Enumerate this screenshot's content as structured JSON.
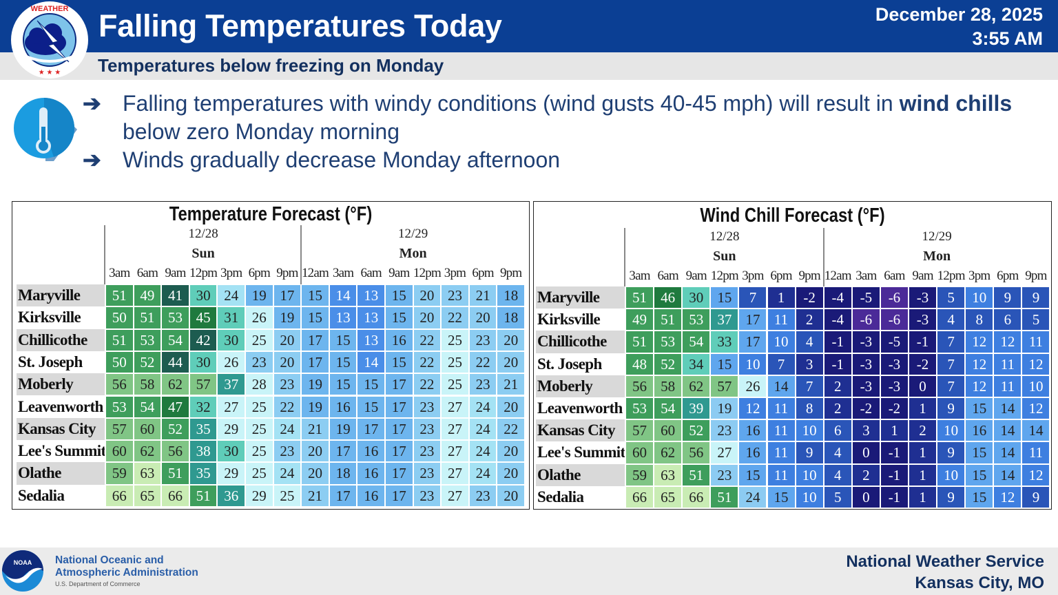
{
  "header": {
    "title": "Falling Temperatures Today",
    "subtitle": "Temperatures below freezing on Monday",
    "date": "December 28, 2025",
    "time": "3:55 AM",
    "logo_text": "NATIONAL WEATHER SERVICE"
  },
  "bullets": [
    {
      "pre": "Falling temperatures with windy conditions (wind gusts 40-45 mph) will result in ",
      "bold": "wind chills",
      "post": " below zero Monday morning"
    },
    {
      "pre": "Winds gradually decrease Monday afternoon",
      "bold": "",
      "post": ""
    }
  ],
  "icons": {
    "bullet": "arrow-right-icon",
    "topic": "thermometer-icon"
  },
  "colors": {
    "header_blue": "#0b3f94",
    "text_navy": "#13305f"
  },
  "locations": [
    "Maryville",
    "Kirksville",
    "Chillicothe",
    "St. Joseph",
    "Moberly",
    "Leavenworth",
    "Kansas City",
    "Lee's Summit",
    "Olathe",
    "Sedalia"
  ],
  "days": [
    {
      "date": "12/28",
      "day": "Sun",
      "times": [
        "3am",
        "6am",
        "9am",
        "12pm",
        "3pm",
        "6pm",
        "9pm"
      ]
    },
    {
      "date": "12/29",
      "day": "Mon",
      "times": [
        "12am",
        "3am",
        "6am",
        "9am",
        "12pm",
        "3pm",
        "6pm",
        "9pm"
      ]
    }
  ],
  "temperature_table": {
    "title": "Temperature Forecast (°F)",
    "rows": [
      [
        51,
        49,
        41,
        30,
        24,
        19,
        17,
        15,
        14,
        13,
        15,
        20,
        23,
        21,
        18
      ],
      [
        50,
        51,
        53,
        45,
        31,
        26,
        19,
        15,
        13,
        13,
        15,
        20,
        22,
        20,
        18
      ],
      [
        51,
        53,
        54,
        42,
        30,
        25,
        20,
        17,
        15,
        13,
        16,
        22,
        25,
        23,
        20
      ],
      [
        50,
        52,
        44,
        30,
        26,
        23,
        20,
        17,
        15,
        14,
        15,
        22,
        25,
        22,
        20
      ],
      [
        56,
        58,
        62,
        57,
        37,
        28,
        23,
        19,
        15,
        15,
        17,
        22,
        25,
        23,
        21
      ],
      [
        53,
        54,
        47,
        32,
        27,
        25,
        22,
        19,
        16,
        15,
        17,
        23,
        27,
        24,
        20
      ],
      [
        57,
        60,
        52,
        35,
        29,
        25,
        24,
        21,
        19,
        17,
        17,
        23,
        27,
        24,
        22
      ],
      [
        60,
        62,
        56,
        38,
        30,
        25,
        23,
        20,
        17,
        16,
        17,
        23,
        27,
        24,
        20
      ],
      [
        59,
        63,
        51,
        35,
        29,
        25,
        24,
        20,
        18,
        16,
        17,
        23,
        27,
        24,
        20
      ],
      [
        66,
        65,
        66,
        51,
        36,
        29,
        25,
        21,
        17,
        16,
        17,
        23,
        27,
        23,
        20
      ]
    ]
  },
  "wind_chill_table": {
    "title": "Wind Chill Forecast (°F)",
    "rows": [
      [
        51,
        46,
        30,
        15,
        7,
        1,
        -2,
        -4,
        -5,
        -6,
        -3,
        5,
        10,
        9,
        9
      ],
      [
        49,
        51,
        53,
        37,
        17,
        11,
        2,
        -4,
        -6,
        -6,
        -3,
        4,
        8,
        6,
        5
      ],
      [
        51,
        53,
        54,
        33,
        17,
        10,
        4,
        -1,
        -3,
        -5,
        -1,
        7,
        12,
        12,
        11
      ],
      [
        48,
        52,
        34,
        15,
        10,
        7,
        3,
        -1,
        -3,
        -3,
        -2,
        7,
        12,
        11,
        12
      ],
      [
        56,
        58,
        62,
        57,
        26,
        14,
        7,
        2,
        -3,
        -3,
        0,
        7,
        12,
        11,
        10
      ],
      [
        53,
        54,
        39,
        19,
        12,
        11,
        8,
        2,
        -2,
        -2,
        1,
        9,
        15,
        14,
        12
      ],
      [
        57,
        60,
        52,
        23,
        16,
        11,
        10,
        6,
        3,
        1,
        2,
        10,
        16,
        14,
        14
      ],
      [
        60,
        62,
        56,
        27,
        16,
        11,
        9,
        4,
        0,
        -1,
        1,
        9,
        15,
        14,
        11
      ],
      [
        59,
        63,
        51,
        23,
        15,
        11,
        10,
        4,
        2,
        -1,
        1,
        10,
        15,
        14,
        12
      ],
      [
        66,
        65,
        66,
        51,
        24,
        15,
        10,
        5,
        0,
        -1,
        1,
        9,
        15,
        12,
        9
      ]
    ]
  },
  "footer": {
    "noaa_line1": "National Oceanic and",
    "noaa_line2": "Atmospheric Administration",
    "noaa_sub": "U.S. Department of Commerce",
    "noaa_logo_text": "NOAA",
    "office_line1": "National Weather Service",
    "office_line2": "Kansas City, MO"
  }
}
